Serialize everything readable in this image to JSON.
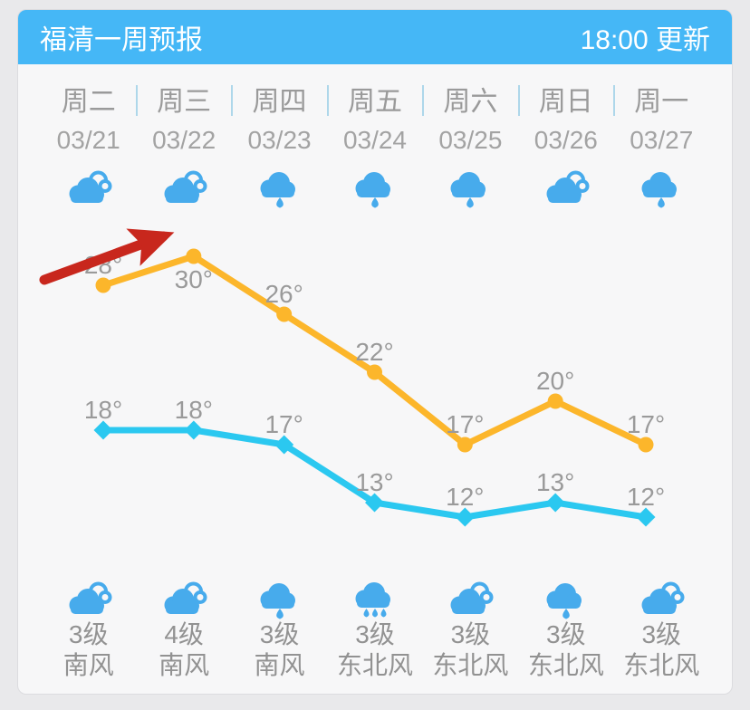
{
  "header": {
    "title": "福清一周预报",
    "updated": "18:00 更新"
  },
  "columns": [
    {
      "weekday": "周二",
      "date": "03/21",
      "day_icon": "cloudy",
      "night_icon": "cloudy",
      "wind_level": "3级",
      "wind_dir": "南风"
    },
    {
      "weekday": "周三",
      "date": "03/22",
      "day_icon": "cloudy",
      "night_icon": "cloudy",
      "wind_level": "4级",
      "wind_dir": "南风"
    },
    {
      "weekday": "周四",
      "date": "03/23",
      "day_icon": "light-rain",
      "night_icon": "light-rain",
      "wind_level": "3级",
      "wind_dir": "南风"
    },
    {
      "weekday": "周五",
      "date": "03/24",
      "day_icon": "light-rain",
      "night_icon": "rain",
      "wind_level": "3级",
      "wind_dir": "东北风"
    },
    {
      "weekday": "周六",
      "date": "03/25",
      "day_icon": "light-rain",
      "night_icon": "cloudy",
      "wind_level": "3级",
      "wind_dir": "东北风"
    },
    {
      "weekday": "周日",
      "date": "03/26",
      "day_icon": "cloudy",
      "night_icon": "light-rain",
      "wind_level": "3级",
      "wind_dir": "东北风"
    },
    {
      "weekday": "周一",
      "date": "03/27",
      "day_icon": "light-rain",
      "night_icon": "cloudy",
      "wind_level": "3级",
      "wind_dir": "东北风"
    }
  ],
  "chart_data": {
    "type": "line",
    "categories": [
      "周二",
      "周三",
      "周四",
      "周五",
      "周六",
      "周日",
      "周一"
    ],
    "unit": "°",
    "ylim": [
      10,
      32
    ],
    "grid": false,
    "legend": "none",
    "label_color": "#9a9a9a",
    "series": [
      {
        "name": "high",
        "color": "#fcb62b",
        "marker": "circle",
        "values": [
          28,
          30,
          26,
          22,
          17,
          20,
          17
        ],
        "label_pos": [
          "above",
          "below",
          "above",
          "above",
          "above",
          "above",
          "above"
        ]
      },
      {
        "name": "low",
        "color": "#2bc8f0",
        "marker": "diamond",
        "values": [
          18,
          18,
          17,
          13,
          12,
          13,
          12
        ],
        "label_pos": [
          "above",
          "above",
          "above",
          "above",
          "above",
          "above",
          "above"
        ]
      }
    ],
    "annotation": {
      "shape": "arrow",
      "color": "#c8271d",
      "points_at": "周三 high 30°",
      "from": [
        29,
        238
      ],
      "to": [
        160,
        190
      ]
    }
  },
  "colors": {
    "header_bg": "#45b7f6",
    "icon_blue": "#47abec",
    "high_line": "#fcb62b",
    "low_line": "#2bc8f0",
    "arrow_red": "#c8271d",
    "text_gray": "#9a9a9a",
    "divider_blue": "#aed7ea",
    "card_bg": "#f7f7f8",
    "page_bg": "#e9e9eb"
  }
}
